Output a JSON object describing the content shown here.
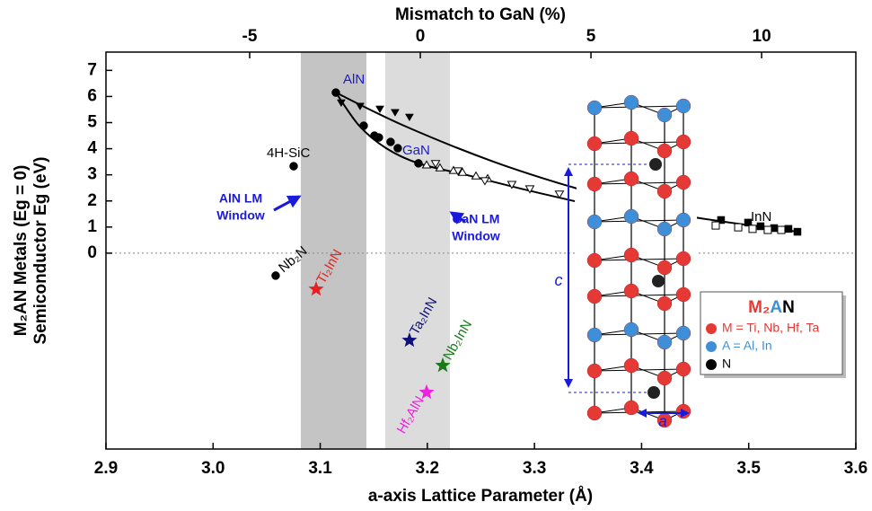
{
  "chart_data": {
    "type": "scatter",
    "xlabel": "a-axis Lattice Parameter (Å)",
    "x2label": "Mismatch to GaN (%)",
    "ylabel": [
      "M₂AN Metals (Eg = 0)",
      "Semiconductor Eg (eV)"
    ],
    "xlim": [
      2.9,
      3.6
    ],
    "xticks": [
      2.9,
      {
        "value": 3,
        "label": "3.0"
      },
      3.1,
      3.2,
      3.3,
      3.4,
      3.5,
      3.6
    ],
    "x2lim": [
      -9.21,
      12.76
    ],
    "x2ticks": [
      -5,
      0,
      5,
      10
    ],
    "ylim": [
      -7.5,
      7.7
    ],
    "yticks": [
      0,
      1,
      2,
      3,
      4,
      5,
      6,
      7
    ],
    "reference_line": 0,
    "bands": [
      {
        "range": [
          3.0819,
          3.1431
        ],
        "color": "#c4c4c4"
      },
      {
        "range": [
          3.1607,
          3.2211
        ],
        "color": "#dcdcdc"
      }
    ],
    "series": [
      {
        "marker": "line",
        "color": "#000000",
        "x": [
          3.1146,
          3.1783,
          3.2621,
          3.346,
          3.4298,
          3.5455
        ],
        "y": [
          6.15,
          4.88,
          3.5,
          2.4,
          1.51,
          0.82
        ]
      },
      {
        "marker": "line",
        "color": "#000000",
        "x": [
          3.1146,
          3.1364,
          3.1615,
          3.1917,
          3.237,
          3.2873,
          3.3376
        ],
        "y": [
          6.15,
          4.88,
          4.02,
          3.44,
          2.99,
          2.47,
          1.99
        ]
      },
      {
        "marker": "circle",
        "color": "#000000",
        "x": [
          3.1406,
          3.1506,
          3.1548,
          3.1657,
          3.1724
        ],
        "y": [
          4.88,
          4.5,
          4.43,
          4.26,
          4.02
        ]
      },
      {
        "marker": "triangle-down",
        "color": "#000000",
        "x": [
          3.1196,
          3.1372,
          3.1557,
          3.1699,
          3.1833
        ],
        "y": [
          5.77,
          5.64,
          5.53,
          5.4,
          5.22
        ]
      },
      {
        "marker": "open-triangle-up",
        "color": "#000000",
        "x": [
          3.1993,
          3.2118,
          3.2244,
          3.2328,
          3.2454,
          3.2563
        ],
        "y": [
          3.37,
          3.26,
          3.16,
          3.09,
          2.95,
          2.85
        ]
      },
      {
        "marker": "open-triangle-down",
        "color": "#000000",
        "x": [
          3.2077,
          3.2286,
          3.2537,
          3.2789,
          3.2957,
          3.3233
        ],
        "y": [
          3.44,
          3.16,
          2.78,
          2.64,
          2.47,
          2.27
        ]
      },
      {
        "marker": "square",
        "color": "#000000",
        "x": [
          3.4742,
          3.4994,
          3.5111,
          3.5237,
          3.5371
        ],
        "y": [
          1.27,
          1.17,
          1.03,
          0.96,
          0.93
        ]
      },
      {
        "marker": "open-square",
        "color": "#000000",
        "x": [
          3.4692,
          3.4902,
          3.5036,
          3.5178,
          3.5304
        ],
        "y": [
          1.06,
          0.99,
          0.93,
          0.89,
          0.89
        ]
      }
    ],
    "labeled_points": {
      "x": [
        3.1146,
        3.1917,
        3.0752,
        3.0584,
        3.5455
      ],
      "y": [
        6.15,
        3.44,
        3.33,
        -0.86,
        0.82
      ],
      "markers": [
        "circle",
        "circle",
        "circle",
        "circle",
        "square"
      ],
      "labels": [
        "AlN",
        "GaN",
        "4H-SiC",
        "Nb₂N",
        "InN"
      ],
      "label_colors": [
        "#1a1acc",
        "#1a1acc",
        "#000000",
        "#000000",
        "#000000"
      ]
    },
    "stars": {
      "x": [
        3.0962,
        3.1833,
        3.2144,
        3.1993
      ],
      "y": [
        -1.38,
        -3.34,
        -4.3,
        -5.33
      ],
      "labels": [
        "Ti₂InN",
        "Ta₂InN",
        "Nb₂InN",
        "Hf₂AlN"
      ],
      "colors": [
        "#e82020",
        "#10107a",
        "#1a7a1a",
        "#ee22dd"
      ]
    },
    "annotations": [
      {
        "lines": [
          "AlN LM",
          "Window"
        ],
        "color": "#1a1add"
      },
      {
        "lines": [
          "GaN LM",
          "Window"
        ],
        "color": "#1a1add"
      }
    ],
    "inset": {
      "c_label": "c",
      "a_label": "a"
    },
    "legend": {
      "title_parts": [
        {
          "text": "M₂",
          "color": "#e53935"
        },
        {
          "text": "A",
          "color": "#3f8fd8"
        },
        {
          "text": "N",
          "color": "#000000"
        }
      ],
      "entries": [
        {
          "label": "M = Ti, Nb, Hf, Ta",
          "color": "#e53935"
        },
        {
          "label": "A = Al, In",
          "color": "#3f8fd8"
        },
        {
          "label": "N",
          "color": "#000000"
        }
      ]
    }
  }
}
